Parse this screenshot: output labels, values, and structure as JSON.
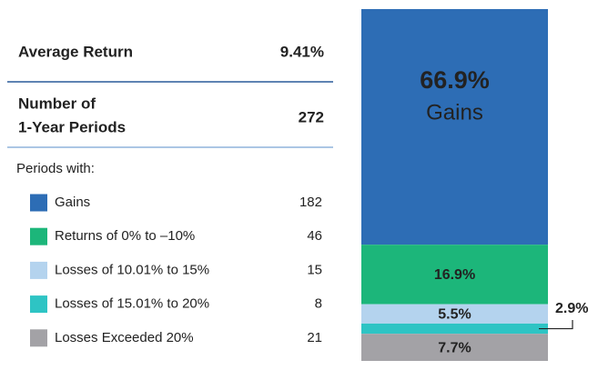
{
  "table": {
    "rows": [
      {
        "label": [
          "Average Return"
        ],
        "value": "9.41%"
      },
      {
        "label": [
          "Number of",
          "1-Year Periods"
        ],
        "value": 272
      }
    ],
    "subheading": "Periods with:",
    "counts": [
      182,
      46,
      15,
      8,
      21
    ]
  },
  "chart_data": {
    "type": "stacked-bar",
    "series": [
      {
        "name": "Gains",
        "color": "#2d6db5",
        "values": [
          66.9
        ],
        "value_labels": [
          "66.9%"
        ]
      },
      {
        "name": "Returns of 0% to –10%",
        "color": "#1cb67a",
        "values": [
          16.9
        ],
        "value_labels": [
          "16.9%"
        ]
      },
      {
        "name": "Losses of 10.01% to 15%",
        "color": "#b4d3ee",
        "values": [
          5.5
        ],
        "value_labels": [
          "5.5%"
        ]
      },
      {
        "name": "Losses of 15.01% to 20%",
        "color": "#2ec4c4",
        "values": [
          2.9
        ],
        "value_labels": [
          "2.9%"
        ]
      },
      {
        "name": "Losses Exceeded 20%",
        "color": "#a3a2a6",
        "values": [
          7.7
        ],
        "value_labels": [
          "7.7%"
        ]
      }
    ]
  }
}
